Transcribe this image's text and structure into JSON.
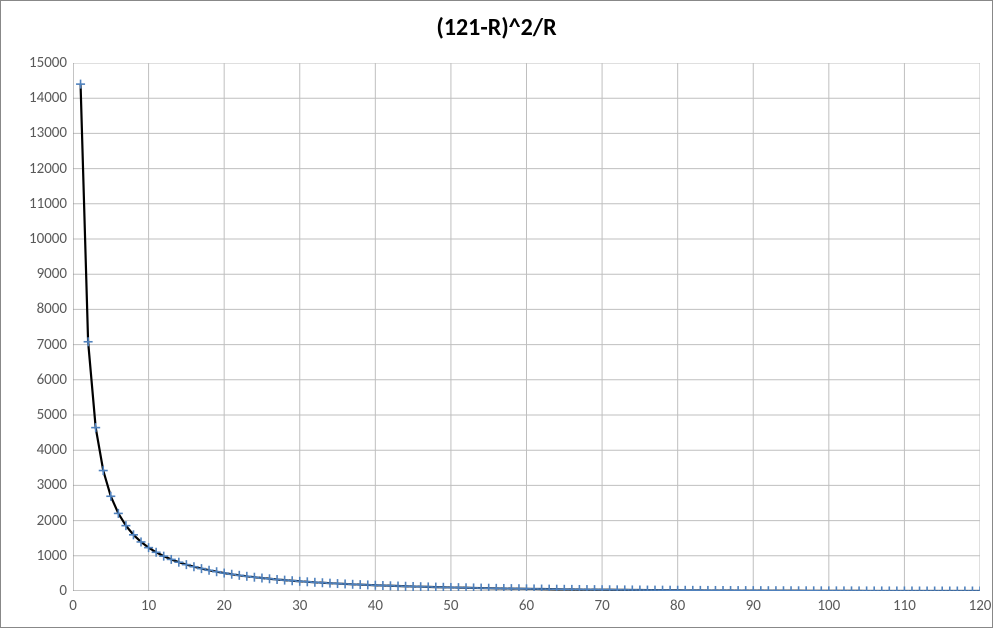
{
  "chart": {
    "type": "scatter-with-line",
    "title": "(121-R)^2/R",
    "title_fontsize": 24,
    "title_fontweight": "bold",
    "background_color": "#ffffff",
    "border_color": "#888888",
    "grid_color": "#bfbfbf",
    "tick_label_color": "#595959",
    "tick_fontsize": 15,
    "xlim": [
      0,
      120
    ],
    "ylim": [
      0,
      15000
    ],
    "xtick_step": 10,
    "ytick_step": 1000,
    "x_values": [
      1,
      2,
      3,
      4,
      5,
      6,
      7,
      8,
      9,
      10,
      11,
      12,
      13,
      14,
      15,
      16,
      17,
      18,
      19,
      20,
      21,
      22,
      23,
      24,
      25,
      26,
      27,
      28,
      29,
      30,
      31,
      32,
      33,
      34,
      35,
      36,
      37,
      38,
      39,
      40,
      41,
      42,
      43,
      44,
      45,
      46,
      47,
      48,
      49,
      50,
      51,
      52,
      53,
      54,
      55,
      56,
      57,
      58,
      59,
      60,
      61,
      62,
      63,
      64,
      65,
      66,
      67,
      68,
      69,
      70,
      71,
      72,
      73,
      74,
      75,
      76,
      77,
      78,
      79,
      80,
      81,
      82,
      83,
      84,
      85,
      86,
      87,
      88,
      89,
      90,
      91,
      92,
      93,
      94,
      95,
      96,
      97,
      98,
      99,
      100,
      101,
      102,
      103,
      104,
      105,
      106,
      107,
      108,
      109,
      110,
      111,
      112,
      113,
      114,
      115,
      116,
      117,
      118,
      119,
      120
    ],
    "y_values": [
      14400.0,
      7080.5,
      4641.333,
      3422.25,
      2691.2,
      2204.167,
      1856.571,
      1596.125,
      1393.778,
      1232.1,
      1100.0,
      990.083,
      897.231,
      817.786,
      749.067,
      689.063,
      636.235,
      589.389,
      547.579,
      510.05,
      476.19,
      445.5,
      417.565,
      392.042,
      368.64,
      347.115,
      327.259,
      308.893,
      291.862,
      276.033,
      261.29,
      247.531,
      234.667,
      222.618,
      211.314,
      200.694,
      190.703,
      181.289,
      172.41,
      164.025,
      156.098,
      148.595,
      141.488,
      134.75,
      128.356,
      122.283,
      116.511,
      111.021,
      105.796,
      100.82,
      96.078,
      91.558,
      87.245,
      83.13,
      79.2,
      75.446,
      71.86,
      68.431,
      65.153,
      62.017,
      59.016,
      56.145,
      53.397,
      50.766,
      48.246,
      45.833,
      43.522,
      41.309,
      39.188,
      37.157,
      35.211,
      33.347,
      31.562,
      29.851,
      28.213,
      26.645,
      25.143,
      23.705,
      22.329,
      21.013,
      19.753,
      18.549,
      17.398,
      16.298,
      15.247,
      14.244,
      13.287,
      12.375,
      11.506,
      10.678,
      9.89,
      9.141,
      8.43,
      7.755,
      7.116,
      6.51,
      5.938,
      5.398,
      4.889,
      4.41,
      3.96,
      3.539,
      3.146,
      2.779,
      2.438,
      2.123,
      1.832,
      1.565,
      1.321,
      1.1,
      0.901,
      0.723,
      0.566,
      0.43,
      0.313,
      0.216,
      0.137,
      0.076,
      0.034,
      0.008
    ],
    "marker": {
      "type": "plus",
      "size": 4.5,
      "color": "#4f81bd"
    },
    "line": {
      "color": "#000000",
      "width": 2.2
    }
  }
}
